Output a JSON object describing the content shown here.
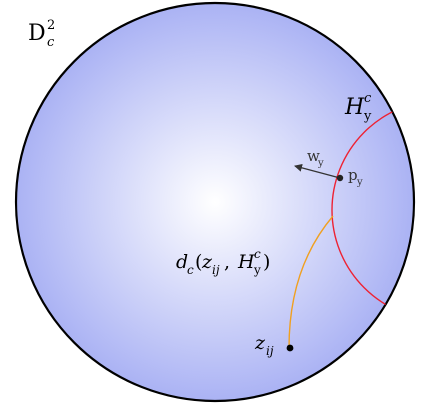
{
  "diagram": {
    "space_label": {
      "base": "D",
      "sup": "2",
      "sub": "c"
    },
    "horosphere_label": {
      "base": "H",
      "sub": "y",
      "sup": "c"
    },
    "point_label": {
      "base": "p",
      "sub": "y"
    },
    "vector_label": {
      "base": "w",
      "sub": "y"
    },
    "distance_label": {
      "func": "d",
      "func_sub": "c",
      "open": "(",
      "arg1_base": "z",
      "arg1_sub": "ij",
      "comma": ", ",
      "arg2_base": "H",
      "arg2_sub": "y",
      "arg2_sup": "c",
      "close": ")"
    },
    "sample_label": {
      "base": "z",
      "sub": "ij"
    },
    "colors": {
      "disk_center": "#ffffff",
      "disk_edge": "#aab2f4",
      "disk_stroke": "#000000",
      "horosphere": "#ee2233",
      "geodesic": "#f0a020",
      "vector": "#333333",
      "point": "#222222"
    }
  }
}
